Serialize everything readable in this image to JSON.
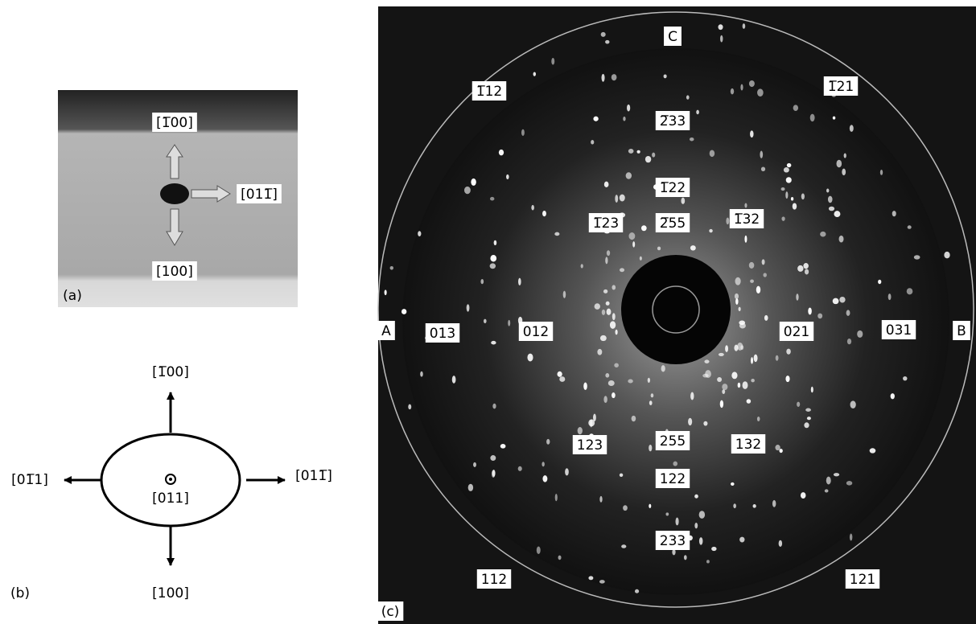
{
  "panel_a": {
    "label": "(a)",
    "up": "[1̅00]",
    "right": "[011̅]",
    "down": "[100]"
  },
  "panel_b": {
    "label": "(b)",
    "center": "[011]",
    "up": "[1̅00]",
    "down": "[100]",
    "left": "[01̅1]",
    "right": "[011̅]"
  },
  "panel_c": {
    "label": "(c)",
    "markers": [
      "A",
      "B",
      "C"
    ],
    "spots": [
      "1̅12",
      "1̅21",
      "2̅33",
      "1̅22",
      "1̅23",
      "2̅55",
      "1̅32",
      "013",
      "012",
      "021",
      "031",
      "123",
      "255",
      "132",
      "122",
      "233",
      "112",
      "121"
    ]
  }
}
